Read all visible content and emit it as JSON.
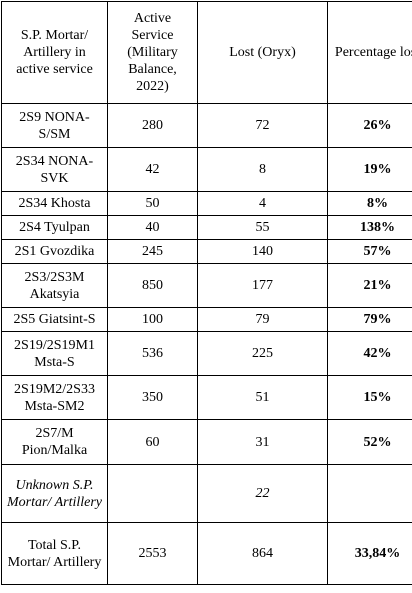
{
  "headers": [
    "S.P. Mortar/ Artillery in active service",
    "Active Service (Military Balance, 2022)",
    "Lost (Oryx)",
    "Percentage lost"
  ],
  "rows": [
    {
      "name": "2S9 NONA-S/SM",
      "active": "280",
      "lost": "72",
      "pct": "26%"
    },
    {
      "name": "2S34 NONA-SVK",
      "active": "42",
      "lost": "8",
      "pct": "19%"
    },
    {
      "name": "2S34 Khosta",
      "active": "50",
      "lost": "4",
      "pct": "8%"
    },
    {
      "name": "2S4 Tyulpan",
      "active": "40",
      "lost": "55",
      "pct": "138%"
    },
    {
      "name": "2S1 Gvozdika",
      "active": "245",
      "lost": "140",
      "pct": "57%"
    },
    {
      "name": "2S3/2S3M Akatsyia",
      "active": "850",
      "lost": "177",
      "pct": "21%"
    },
    {
      "name": "2S5 Giatsint-S",
      "active": "100",
      "lost": "79",
      "pct": "79%"
    },
    {
      "name": "2S19/2S19M1 Msta-S",
      "active": "536",
      "lost": "225",
      "pct": "42%"
    },
    {
      "name": "2S19M2/2S33 Msta-SM2",
      "active": "350",
      "lost": "51",
      "pct": "15%"
    },
    {
      "name": "2S7/M Pion/Malka",
      "active": "60",
      "lost": "31",
      "pct": "52%"
    },
    {
      "name": "Unknown S.P. Mortar/ Artillery",
      "active": "",
      "lost": "22",
      "pct": ""
    },
    {
      "name": "Total S.P. Mortar/ Artillery",
      "active": "2553",
      "lost": "864",
      "pct": "33,84%"
    }
  ]
}
